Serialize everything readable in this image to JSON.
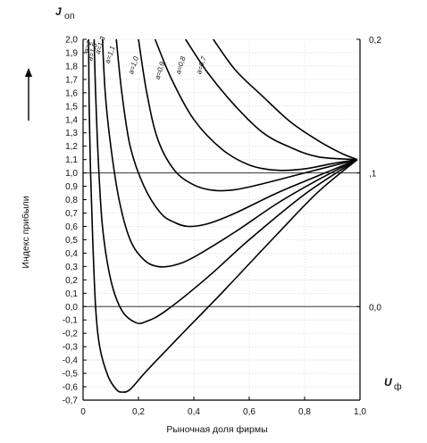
{
  "chart_data": {
    "type": "line",
    "y_title_main": "J",
    "y_title_sub": "оп",
    "x_title_main": "U",
    "x_title_sub": "ф",
    "ylabel": "Индекс прибыли",
    "xlabel": "Рыночная доля фирмы",
    "xlim": [
      0,
      1.0
    ],
    "ylim": [
      -0.7,
      2.0
    ],
    "x_ticks": [
      "0",
      "0,2",
      "0,4",
      "0,6",
      "0,8",
      "1,0"
    ],
    "y_ticks": [
      "-0,7",
      "-0,6",
      "-0,5",
      "-0,4",
      "-0,3",
      "-0,2",
      "-0,1",
      "0,0",
      "0,1",
      "0,2",
      "0,3",
      "0,4",
      "0,5",
      "0,6",
      "0,7",
      "0,8",
      "0,9",
      "1,0",
      "1,1",
      "1,2",
      "1,3",
      "1,4",
      "1,5",
      "1,6",
      "1,7",
      "1,8",
      "1,9",
      "2,0"
    ],
    "right_ticks": [
      {
        "label": "0,2",
        "y": 2.0
      },
      {
        "label": ",1",
        "y": 1.0
      },
      {
        "label": "0,0",
        "y": 0.0
      }
    ],
    "reference_lines": [
      1.0,
      0.0
    ],
    "series": [
      {
        "name": "a=0,7",
        "points": [
          [
            0.47,
            2.0
          ],
          [
            0.55,
            1.77
          ],
          [
            0.65,
            1.57
          ],
          [
            0.75,
            1.38
          ],
          [
            0.85,
            1.24
          ],
          [
            0.93,
            1.15
          ],
          [
            0.99,
            1.1
          ]
        ]
      },
      {
        "name": "a=0,8",
        "points": [
          [
            0.37,
            2.0
          ],
          [
            0.45,
            1.75
          ],
          [
            0.55,
            1.5
          ],
          [
            0.65,
            1.3
          ],
          [
            0.75,
            1.19
          ],
          [
            0.85,
            1.12
          ],
          [
            0.99,
            1.1
          ]
        ]
      },
      {
        "name": "a=0,9",
        "points": [
          [
            0.26,
            2.0
          ],
          [
            0.32,
            1.7
          ],
          [
            0.4,
            1.4
          ],
          [
            0.5,
            1.18
          ],
          [
            0.6,
            1.06
          ],
          [
            0.7,
            1.02
          ],
          [
            0.8,
            1.03
          ],
          [
            0.9,
            1.07
          ],
          [
            0.99,
            1.1
          ]
        ]
      },
      {
        "name": "a=1,0",
        "points": [
          [
            0.2,
            2.0
          ],
          [
            0.23,
            1.6
          ],
          [
            0.27,
            1.25
          ],
          [
            0.33,
            1.02
          ],
          [
            0.4,
            0.91
          ],
          [
            0.47,
            0.87
          ],
          [
            0.55,
            0.875
          ],
          [
            0.65,
            0.92
          ],
          [
            0.8,
            1.0
          ],
          [
            0.99,
            1.1
          ]
        ]
      },
      {
        "name": "a=1,1",
        "points": [
          [
            0.12,
            2.0
          ],
          [
            0.14,
            1.6
          ],
          [
            0.17,
            1.2
          ],
          [
            0.22,
            0.9
          ],
          [
            0.28,
            0.7
          ],
          [
            0.33,
            0.63
          ],
          [
            0.38,
            0.6
          ],
          [
            0.45,
            0.62
          ],
          [
            0.55,
            0.7
          ],
          [
            0.7,
            0.85
          ],
          [
            0.85,
            0.98
          ],
          [
            0.99,
            1.1
          ]
        ]
      },
      {
        "name": "a=1,3",
        "points": [
          [
            0.07,
            2.0
          ],
          [
            0.08,
            1.6
          ],
          [
            0.1,
            1.2
          ],
          [
            0.13,
            0.8
          ],
          [
            0.17,
            0.5
          ],
          [
            0.22,
            0.35
          ],
          [
            0.27,
            0.3
          ],
          [
            0.33,
            0.31
          ],
          [
            0.4,
            0.37
          ],
          [
            0.55,
            0.56
          ],
          [
            0.7,
            0.77
          ],
          [
            0.85,
            0.95
          ],
          [
            0.99,
            1.1
          ]
        ]
      },
      {
        "name": "a=1,5",
        "points": [
          [
            0.04,
            2.0
          ],
          [
            0.045,
            1.6
          ],
          [
            0.055,
            1.1
          ],
          [
            0.07,
            0.6
          ],
          [
            0.1,
            0.2
          ],
          [
            0.14,
            -0.03
          ],
          [
            0.19,
            -0.12
          ],
          [
            0.23,
            -0.11
          ],
          [
            0.3,
            -0.03
          ],
          [
            0.45,
            0.22
          ],
          [
            0.6,
            0.5
          ],
          [
            0.8,
            0.84
          ],
          [
            0.99,
            1.1
          ]
        ]
      },
      {
        "name": "a=2",
        "points": [
          [
            0.02,
            2.0
          ],
          [
            0.022,
            1.5
          ],
          [
            0.027,
            1.0
          ],
          [
            0.035,
            0.5
          ],
          [
            0.045,
            0.0
          ],
          [
            0.06,
            -0.3
          ],
          [
            0.09,
            -0.52
          ],
          [
            0.12,
            -0.62
          ],
          [
            0.14,
            -0.64
          ],
          [
            0.17,
            -0.62
          ],
          [
            0.23,
            -0.48
          ],
          [
            0.35,
            -0.22
          ],
          [
            0.5,
            0.1
          ],
          [
            0.7,
            0.54
          ],
          [
            0.85,
            0.86
          ],
          [
            0.99,
            1.1
          ]
        ]
      }
    ]
  }
}
